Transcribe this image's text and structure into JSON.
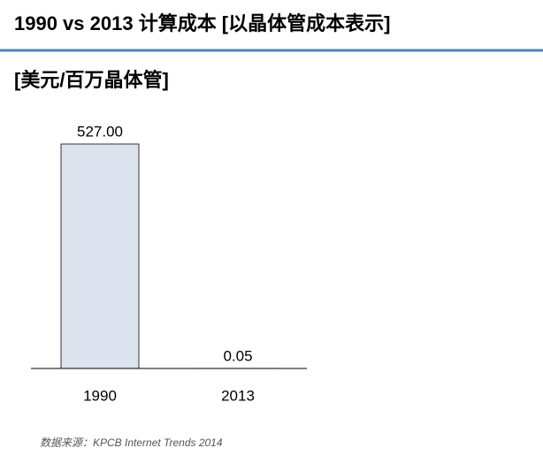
{
  "chart_data": {
    "type": "bar",
    "title": "1990 vs 2013 计算成本 [以晶体管成本表示]",
    "subtitle": "[美元/百万晶体管]",
    "categories": [
      "1990",
      "2013"
    ],
    "values": [
      527.0,
      0.05
    ],
    "value_labels": [
      "527.00",
      "0.05"
    ],
    "color": "#dce3ee",
    "source": "数据来源：KPCB Internet Trends 2014"
  }
}
